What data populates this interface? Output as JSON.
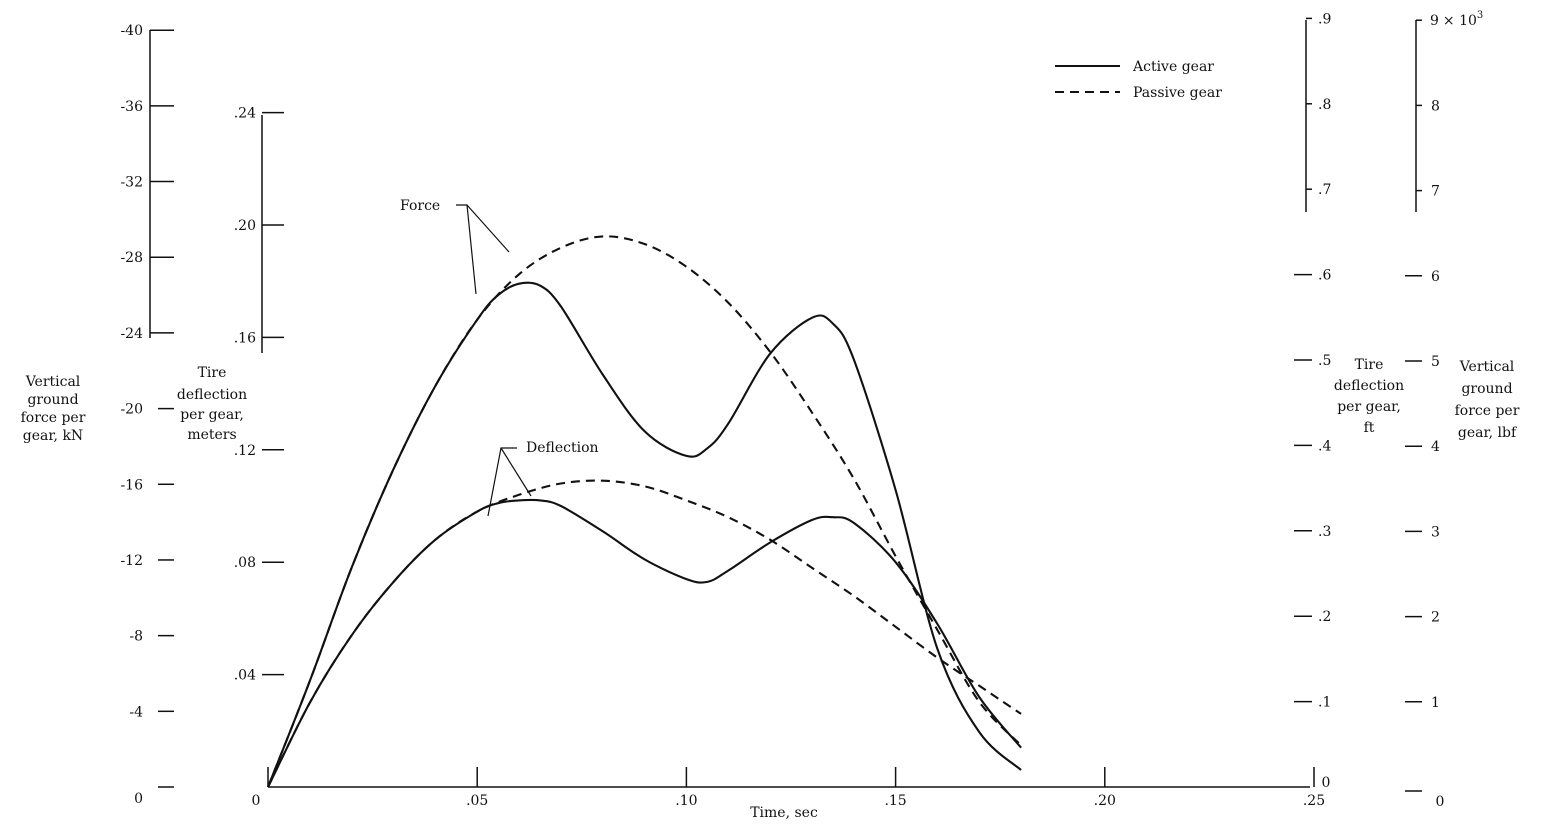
{
  "chart_data": {
    "type": "line",
    "title": "",
    "xlabel": "Time, sec",
    "x_ticks": [
      "0",
      ".05",
      ".10",
      ".15",
      ".20",
      ".25"
    ],
    "xlim": [
      0,
      0.25
    ],
    "y_axes": {
      "force_kN": {
        "label": [
          "Vertical",
          "ground",
          "force per",
          "gear, kN"
        ],
        "ticks": [
          "0",
          "-4",
          "-8",
          "-12",
          "-16",
          "-20",
          "-24",
          "-28",
          "-32",
          "-36",
          "-40"
        ]
      },
      "deflection_m": {
        "label": [
          "Tire",
          "deflection",
          "per gear,",
          "meters"
        ],
        "ticks": [
          "0",
          ".04",
          ".08",
          ".12",
          ".16",
          ".20",
          ".24"
        ]
      },
      "deflection_ft": {
        "label": [
          "Tire",
          "deflection",
          "per gear,",
          "ft"
        ],
        "ticks": [
          "0",
          ".1",
          ".2",
          ".3",
          ".4",
          ".5",
          ".6",
          ".7",
          ".8",
          ".9"
        ]
      },
      "force_lbf": {
        "label": [
          "Vertical",
          "ground",
          "force per",
          "gear, lbf"
        ],
        "ticks": [
          "0",
          "1",
          "2",
          "3",
          "4",
          "5",
          "6",
          "7",
          "8",
          "9"
        ],
        "multiplier": "× 10",
        "multiplier_exp": "3"
      }
    },
    "legend": {
      "position": "top-right",
      "entries": [
        {
          "label": "Active gear",
          "style": "solid"
        },
        {
          "label": "Passive gear",
          "style": "dashed"
        }
      ]
    },
    "annotations": [
      "Force",
      "Deflection"
    ],
    "series": [
      {
        "group": "Force",
        "style": "solid",
        "unit": "kN",
        "x": [
          0,
          0.01,
          0.02,
          0.03,
          0.04,
          0.05,
          0.055,
          0.06,
          0.065,
          0.07,
          0.08,
          0.09,
          0.1,
          0.105,
          0.11,
          0.12,
          0.13,
          0.135,
          0.14,
          0.15,
          0.16,
          0.17,
          0.18
        ],
        "y": [
          0,
          5.6,
          11.6,
          16.8,
          21.2,
          24.7,
          26.0,
          26.6,
          26.5,
          25.4,
          21.8,
          18.8,
          17.5,
          17.9,
          19.2,
          22.9,
          24.8,
          24.5,
          22.6,
          15.7,
          7.3,
          2.9,
          0.9
        ]
      },
      {
        "group": "Force",
        "style": "dashed",
        "unit": "kN",
        "x": [
          0,
          0.01,
          0.02,
          0.03,
          0.04,
          0.05,
          0.06,
          0.07,
          0.08,
          0.09,
          0.1,
          0.11,
          0.12,
          0.13,
          0.14,
          0.15,
          0.16,
          0.17,
          0.18
        ],
        "y": [
          0,
          5.6,
          11.6,
          16.8,
          21.2,
          24.7,
          27.1,
          28.5,
          29.1,
          28.7,
          27.5,
          25.6,
          23.0,
          19.8,
          16.3,
          12.2,
          8.3,
          4.5,
          2.2
        ]
      },
      {
        "group": "Deflection",
        "style": "solid",
        "unit": "m",
        "x": [
          0,
          0.01,
          0.02,
          0.03,
          0.04,
          0.05,
          0.055,
          0.06,
          0.065,
          0.07,
          0.08,
          0.09,
          0.1,
          0.105,
          0.11,
          0.12,
          0.13,
          0.135,
          0.14,
          0.15,
          0.16,
          0.17,
          0.18
        ],
        "y": [
          0,
          0.03,
          0.054,
          0.073,
          0.088,
          0.098,
          0.101,
          0.102,
          0.102,
          0.1,
          0.091,
          0.081,
          0.074,
          0.073,
          0.077,
          0.087,
          0.095,
          0.096,
          0.094,
          0.08,
          0.058,
          0.032,
          0.014
        ]
      },
      {
        "group": "Deflection",
        "style": "dashed",
        "unit": "m",
        "x": [
          0,
          0.01,
          0.02,
          0.03,
          0.04,
          0.05,
          0.06,
          0.07,
          0.08,
          0.09,
          0.1,
          0.11,
          0.12,
          0.13,
          0.14,
          0.15,
          0.16,
          0.17,
          0.18
        ],
        "y": [
          0,
          0.03,
          0.054,
          0.073,
          0.088,
          0.098,
          0.104,
          0.108,
          0.109,
          0.107,
          0.102,
          0.096,
          0.088,
          0.078,
          0.068,
          0.057,
          0.046,
          0.036,
          0.026
        ]
      }
    ]
  }
}
